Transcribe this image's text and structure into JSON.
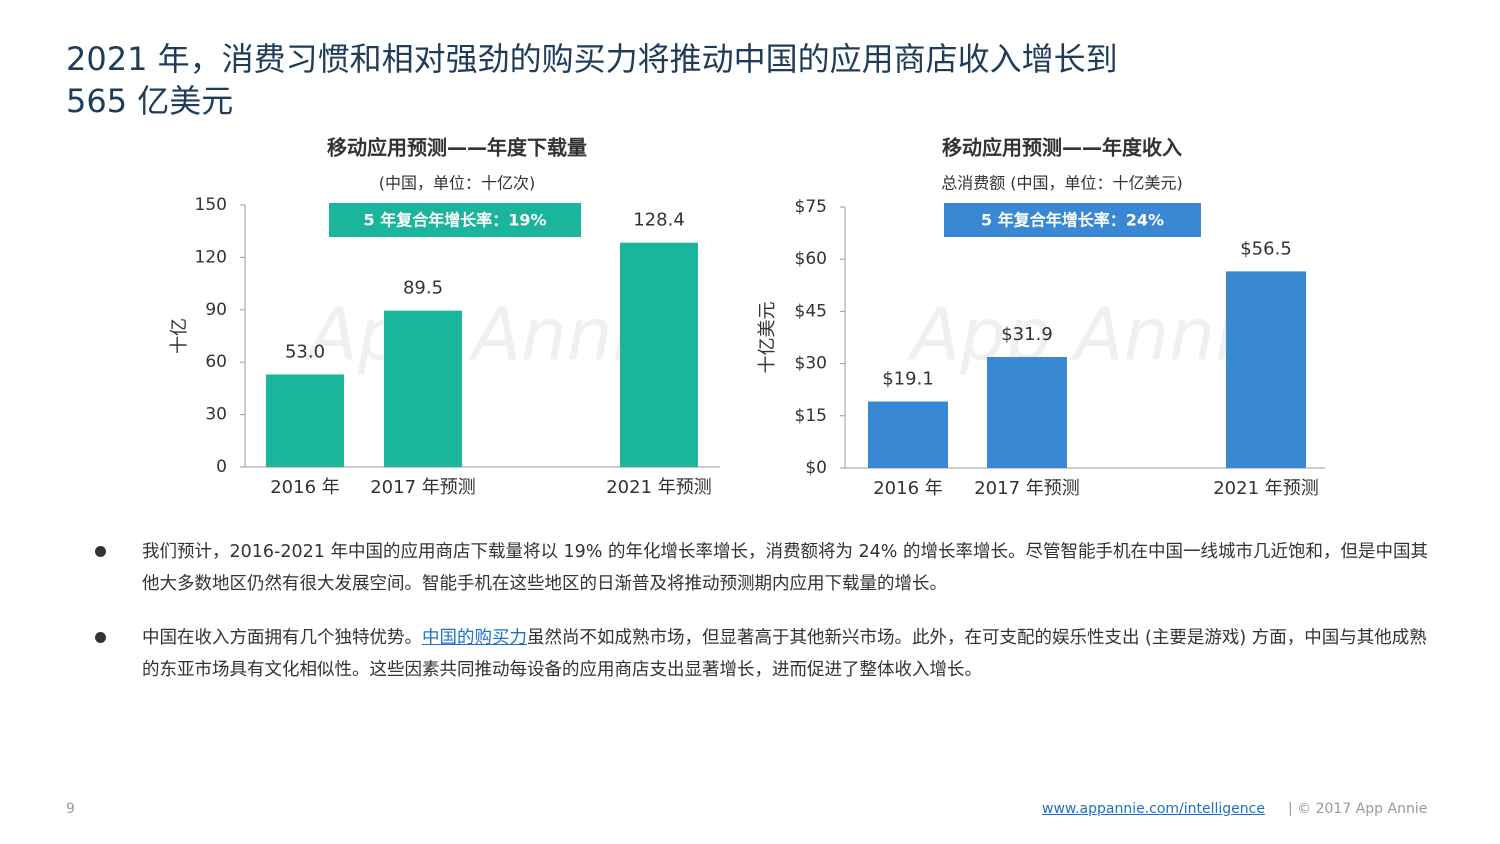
{
  "title_lines": [
    "2021 年，消费习惯和相对强劲的购买力将推动中国的应用商店收入增长到",
    "565 亿美元"
  ],
  "watermark": "App Annie",
  "chart_data": [
    {
      "type": "bar",
      "title": "移动应用预测——年度下载量",
      "subtitle": "(中国，单位：十亿次)",
      "annotation": "5 年复合年增长率：19%",
      "y_label": "十亿",
      "categories": [
        "2016 年",
        "2017 年预测",
        "2021 年预测"
      ],
      "values": [
        53.0,
        89.5,
        128.4
      ],
      "value_labels": [
        "53.0",
        "89.5",
        "128.4"
      ],
      "color": "#1ab59a",
      "ylim": [
        0,
        150
      ],
      "yticks": [
        0,
        30,
        60,
        90,
        120,
        150
      ],
      "grid": false
    },
    {
      "type": "bar",
      "title": "移动应用预测——年度收入",
      "subtitle": "总消费额 (中国，单位：十亿美元)",
      "annotation": "5 年复合年增长率：24%",
      "y_label": "十亿美元",
      "categories": [
        "2016 年",
        "2017 年预测",
        "2021 年预测"
      ],
      "values": [
        19.1,
        31.9,
        56.5
      ],
      "value_labels": [
        "$19.1",
        "$31.9",
        "$56.5"
      ],
      "color": "#3a87d4",
      "ylim": [
        0,
        75
      ],
      "yticks": [
        {
          "value": 0,
          "label": "$0"
        },
        {
          "value": 15,
          "label": "$15"
        },
        {
          "value": 30,
          "label": "$30"
        },
        {
          "value": 45,
          "label": "$45"
        },
        {
          "value": 60,
          "label": "$60"
        },
        {
          "value": 75,
          "label": "$75"
        }
      ],
      "grid": false
    }
  ],
  "bullets": [
    [
      "我们预计，2016-2021 年中国的应用商店下载量将以 19% 的年化增长率增长，消费额将为 24% 的增长率增长。尽管智能手机在中国一线城市几近饱和，但是中国其他大多数地区仍然有很大发展空间。智能手机在这些地区的日渐普及将推动预测期内应用下载量的增长。"
    ],
    [
      "中国在收入方面拥有几个独特优势。",
      "中国的购买力",
      "虽然尚不如成熟市场，但显著高于其他新兴市场。此外，在可支配的娱乐性支出 (主要是游戏) 方面，中国与其他成熟的东亚市场具有文化相似性。这些因素共同推动每设备的应用商店支出显著增长，进而促进了整体收入增长。"
    ]
  ],
  "footer": {
    "page": "9",
    "link": "www.appannie.com/intelligence",
    "copyright": "|  © 2017 App Annie"
  }
}
